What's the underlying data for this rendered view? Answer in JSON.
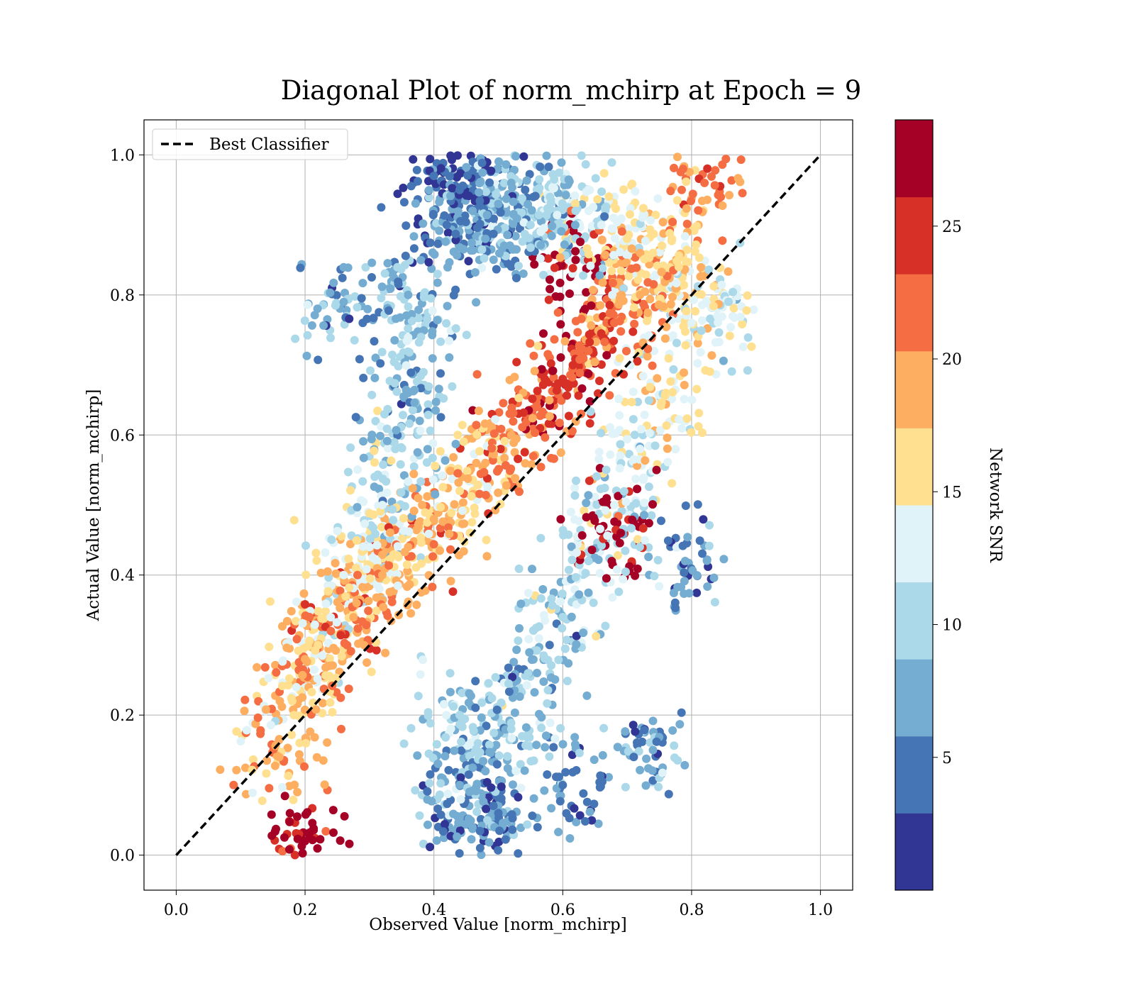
{
  "chart_data": {
    "type": "scatter",
    "title": "Diagonal Plot of norm_mchirp at Epoch = 9",
    "xlabel": "Observed Value [norm_mchirp]",
    "ylabel": "Actual Value [norm_mchirp]",
    "xlim": [
      -0.05,
      1.05
    ],
    "ylim": [
      -0.05,
      1.05
    ],
    "x_ticks": [
      "0.0",
      "0.2",
      "0.4",
      "0.6",
      "0.8",
      "1.0"
    ],
    "y_ticks": [
      "0.0",
      "0.2",
      "0.4",
      "0.6",
      "0.8",
      "1.0"
    ],
    "grid": true,
    "legend": {
      "placement": "top-left",
      "entries": [
        "Best Classifier"
      ]
    },
    "reference_line": {
      "name": "Best Classifier",
      "style": "dashed",
      "color": "#000000",
      "x": [
        0,
        1
      ],
      "y": [
        0,
        1
      ]
    },
    "colorbar": {
      "label": "Network SNR",
      "range": [
        0,
        29
      ],
      "ticks": [
        "5",
        "10",
        "15",
        "20",
        "25"
      ],
      "tick_values": [
        5,
        10,
        15,
        20,
        25
      ],
      "bins": 10,
      "colors": [
        "#313695",
        "#4575b4",
        "#74add1",
        "#abd9e9",
        "#e0f3f8",
        "#fee090",
        "#fdae61",
        "#f46d43",
        "#d73027",
        "#a50026"
      ]
    },
    "series": [
      {
        "description": "approximate cluster samples (centers in data units) colored by SNR",
        "points": [
          [
            0.44,
            0.95,
            4
          ],
          [
            0.46,
            0.92,
            6
          ],
          [
            0.48,
            0.88,
            7
          ],
          [
            0.42,
            0.9,
            5
          ],
          [
            0.5,
            0.93,
            8
          ],
          [
            0.4,
            0.97,
            3
          ],
          [
            0.52,
            0.96,
            7
          ],
          [
            0.55,
            0.9,
            9
          ],
          [
            0.58,
            0.94,
            10
          ],
          [
            0.62,
            0.92,
            11
          ],
          [
            0.66,
            0.9,
            13
          ],
          [
            0.7,
            0.88,
            15
          ],
          [
            0.74,
            0.86,
            16
          ],
          [
            0.78,
            0.84,
            17
          ],
          [
            0.72,
            0.8,
            19
          ],
          [
            0.68,
            0.76,
            21
          ],
          [
            0.64,
            0.72,
            23
          ],
          [
            0.6,
            0.68,
            25
          ],
          [
            0.56,
            0.64,
            22
          ],
          [
            0.52,
            0.6,
            20
          ],
          [
            0.48,
            0.56,
            18
          ],
          [
            0.44,
            0.52,
            17
          ],
          [
            0.4,
            0.48,
            19
          ],
          [
            0.36,
            0.44,
            20
          ],
          [
            0.32,
            0.4,
            18
          ],
          [
            0.28,
            0.36,
            20
          ],
          [
            0.24,
            0.32,
            21
          ],
          [
            0.2,
            0.28,
            19
          ],
          [
            0.18,
            0.22,
            17
          ],
          [
            0.16,
            0.14,
            18
          ],
          [
            0.36,
            0.8,
            8
          ],
          [
            0.38,
            0.74,
            9
          ],
          [
            0.36,
            0.66,
            8
          ],
          [
            0.34,
            0.58,
            10
          ],
          [
            0.32,
            0.5,
            12
          ],
          [
            0.3,
            0.44,
            13
          ],
          [
            0.26,
            0.4,
            14
          ],
          [
            0.22,
            0.3,
            15
          ],
          [
            0.44,
            0.2,
            10
          ],
          [
            0.48,
            0.12,
            7
          ],
          [
            0.5,
            0.06,
            5
          ],
          [
            0.46,
            0.04,
            6
          ],
          [
            0.44,
            0.1,
            8
          ],
          [
            0.52,
            0.18,
            9
          ],
          [
            0.56,
            0.26,
            8
          ],
          [
            0.6,
            0.34,
            10
          ],
          [
            0.64,
            0.42,
            11
          ],
          [
            0.68,
            0.5,
            12
          ],
          [
            0.72,
            0.58,
            13
          ],
          [
            0.76,
            0.66,
            15
          ],
          [
            0.8,
            0.76,
            14
          ],
          [
            0.84,
            0.77,
            13
          ],
          [
            0.62,
            0.85,
            27
          ],
          [
            0.69,
            0.46,
            28
          ],
          [
            0.2,
            0.02,
            27
          ],
          [
            0.79,
            0.42,
            6
          ],
          [
            0.74,
            0.15,
            7
          ],
          [
            0.26,
            0.79,
            7
          ],
          [
            0.82,
            0.96,
            21
          ],
          [
            0.6,
            0.1,
            5
          ]
        ]
      }
    ]
  }
}
